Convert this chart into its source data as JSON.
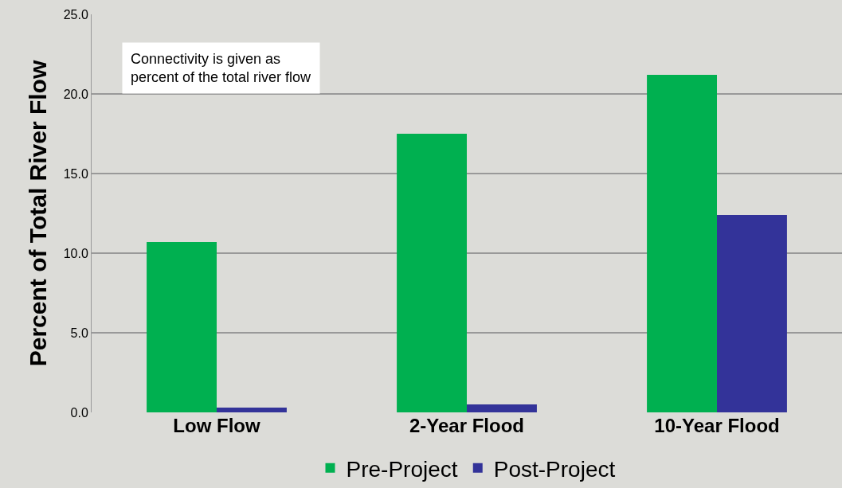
{
  "chart_data": {
    "type": "bar",
    "ylabel": "Percent of Total River Flow",
    "categories": [
      "Low Flow",
      "2-Year Flood",
      "10-Year Flood"
    ],
    "series": [
      {
        "name": "Pre-Project",
        "color": "#00b050",
        "values": [
          10.7,
          17.5,
          21.2
        ]
      },
      {
        "name": "Post-Project",
        "color": "#333399",
        "values": [
          0.3,
          0.5,
          12.4
        ]
      }
    ],
    "ylim": [
      0,
      25
    ],
    "yticks": [
      {
        "value": 0,
        "label": "0.0"
      },
      {
        "value": 5,
        "label": "5.0"
      },
      {
        "value": 10,
        "label": "10.0"
      },
      {
        "value": 15,
        "label": "15.0"
      },
      {
        "value": 20,
        "label": "20.0"
      },
      {
        "value": 25,
        "label": "25.0"
      }
    ],
    "grid": "y",
    "legend": "bottom",
    "annotations": [
      "Connectivity is given as\npercent of the total river flow"
    ]
  }
}
